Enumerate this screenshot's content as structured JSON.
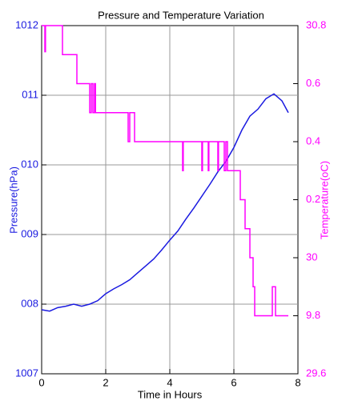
{
  "chart_data": {
    "type": "line",
    "title": "Pressure and Temperature Variation",
    "x_label": "Time in Hours",
    "y_label": "Pressure(hPa)",
    "y2_label": "Temperature(oC)",
    "xlim": [
      0,
      8
    ],
    "xticks": [
      0,
      2,
      4,
      6,
      8
    ],
    "ylim": [
      1007,
      1012
    ],
    "yticks": [
      1007,
      {
        "value": 1008,
        "label": "008"
      },
      {
        "value": 1009,
        "label": "009"
      },
      {
        "value": 1010,
        "label": "010"
      },
      {
        "value": 1011,
        "label": "011"
      },
      1012
    ],
    "y2lim": [
      29.6,
      30.8
    ],
    "y2ticks": [
      29.6,
      {
        "value": 29.8,
        "label": "9.8"
      },
      30,
      {
        "value": 30.2,
        "label": "0.2"
      },
      {
        "value": 30.4,
        "label": "0.4"
      },
      {
        "value": 30.6,
        "label": "0.6"
      },
      30.8
    ],
    "grid": true,
    "series": [
      {
        "name": "Pressure",
        "color": "#1a1ae0",
        "axis": "y",
        "x": [
          0,
          0.25,
          0.5,
          0.75,
          1,
          1.25,
          1.5,
          1.75,
          2,
          2.25,
          2.5,
          2.75,
          3,
          3.25,
          3.5,
          3.75,
          4,
          4.25,
          4.5,
          4.75,
          5,
          5.25,
          5.5,
          5.75,
          6,
          6.25,
          6.5,
          6.75,
          7,
          7.25,
          7.5,
          7.7
        ],
        "values": [
          1007.92,
          1007.9,
          1007.95,
          1007.97,
          1008.0,
          1007.97,
          1008.0,
          1008.05,
          1008.15,
          1008.22,
          1008.28,
          1008.35,
          1008.45,
          1008.55,
          1008.65,
          1008.78,
          1008.92,
          1009.05,
          1009.22,
          1009.38,
          1009.55,
          1009.72,
          1009.9,
          1010.05,
          1010.25,
          1010.5,
          1010.7,
          1010.8,
          1010.95,
          1011.02,
          1010.92,
          1010.75
        ]
      },
      {
        "name": "Temperature",
        "color": "#ff00ff",
        "axis": "y2",
        "x": [
          0,
          0.1,
          0.1,
          0.12,
          0.12,
          0.65,
          0.65,
          1.1,
          1.1,
          1.5,
          1.5,
          1.55,
          1.55,
          1.6,
          1.6,
          1.65,
          1.65,
          1.68,
          1.68,
          2.7,
          2.7,
          2.75,
          2.75,
          2.9,
          2.9,
          4.4,
          4.4,
          4.42,
          4.42,
          5.0,
          5.0,
          5.02,
          5.02,
          5.2,
          5.2,
          5.22,
          5.22,
          5.5,
          5.5,
          5.52,
          5.52,
          5.7,
          5.7,
          5.75,
          5.75,
          5.8,
          5.8,
          6.2,
          6.2,
          6.35,
          6.35,
          6.5,
          6.5,
          6.6,
          6.6,
          6.65,
          6.65,
          7.2,
          7.2,
          7.3,
          7.3,
          7.7
        ],
        "values": [
          30.8,
          30.8,
          30.71,
          30.71,
          30.8,
          30.8,
          30.7,
          30.7,
          30.6,
          30.6,
          30.5,
          30.5,
          30.6,
          30.6,
          30.5,
          30.5,
          30.6,
          30.6,
          30.5,
          30.5,
          30.4,
          30.4,
          30.5,
          30.5,
          30.4,
          30.4,
          30.3,
          30.3,
          30.4,
          30.4,
          30.3,
          30.3,
          30.4,
          30.4,
          30.3,
          30.3,
          30.4,
          30.4,
          30.3,
          30.3,
          30.4,
          30.4,
          30.3,
          30.3,
          30.4,
          30.4,
          30.3,
          30.3,
          30.2,
          30.2,
          30.1,
          30.1,
          30.0,
          30.0,
          29.9,
          29.9,
          29.8,
          29.8,
          29.9,
          29.9,
          29.8,
          29.8
        ]
      }
    ]
  }
}
